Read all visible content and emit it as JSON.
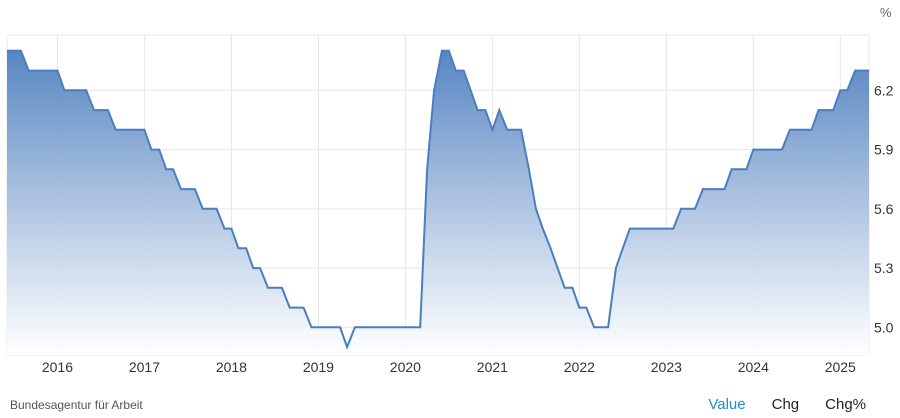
{
  "chart_data": {
    "type": "area",
    "unit_label": "%",
    "xlim": [
      2015.42,
      2025.33
    ],
    "ylim": [
      4.86,
      6.48
    ],
    "yticks": [
      "5.0",
      "5.3",
      "5.6",
      "5.9",
      "6.2"
    ],
    "yticks_values": [
      5.0,
      5.3,
      5.6,
      5.9,
      6.2
    ],
    "xticks": [
      "2016",
      "2017",
      "2018",
      "2019",
      "2020",
      "2021",
      "2022",
      "2023",
      "2024",
      "2025"
    ],
    "xticks_values": [
      2016,
      2017,
      2018,
      2019,
      2020,
      2021,
      2022,
      2023,
      2024,
      2025
    ],
    "grid": true,
    "colors": {
      "line": "#4a7ebf",
      "fill_top": "#4f7fbf",
      "fill_bottom": "#ffffff",
      "grid": "#e6e6e6"
    },
    "series": [
      {
        "points": [
          [
            2015.42,
            6.4
          ],
          [
            2015.58,
            6.4
          ],
          [
            2015.67,
            6.3
          ],
          [
            2016.0,
            6.3
          ],
          [
            2016.08,
            6.2
          ],
          [
            2016.33,
            6.2
          ],
          [
            2016.42,
            6.1
          ],
          [
            2016.58,
            6.1
          ],
          [
            2016.67,
            6.0
          ],
          [
            2017.0,
            6.0
          ],
          [
            2017.08,
            5.9
          ],
          [
            2017.17,
            5.9
          ],
          [
            2017.25,
            5.8
          ],
          [
            2017.33,
            5.8
          ],
          [
            2017.42,
            5.7
          ],
          [
            2017.58,
            5.7
          ],
          [
            2017.67,
            5.6
          ],
          [
            2017.83,
            5.6
          ],
          [
            2017.92,
            5.5
          ],
          [
            2018.0,
            5.5
          ],
          [
            2018.08,
            5.4
          ],
          [
            2018.17,
            5.4
          ],
          [
            2018.25,
            5.3
          ],
          [
            2018.33,
            5.3
          ],
          [
            2018.42,
            5.2
          ],
          [
            2018.58,
            5.2
          ],
          [
            2018.67,
            5.1
          ],
          [
            2018.83,
            5.1
          ],
          [
            2018.92,
            5.0
          ],
          [
            2019.25,
            5.0
          ],
          [
            2019.33,
            4.9
          ],
          [
            2019.42,
            5.0
          ],
          [
            2020.17,
            5.0
          ],
          [
            2020.25,
            5.8
          ],
          [
            2020.33,
            6.2
          ],
          [
            2020.42,
            6.4
          ],
          [
            2020.5,
            6.4
          ],
          [
            2020.58,
            6.3
          ],
          [
            2020.67,
            6.3
          ],
          [
            2020.83,
            6.1
          ],
          [
            2020.92,
            6.1
          ],
          [
            2021.0,
            6.0
          ],
          [
            2021.08,
            6.1
          ],
          [
            2021.17,
            6.0
          ],
          [
            2021.33,
            6.0
          ],
          [
            2021.42,
            5.8
          ],
          [
            2021.5,
            5.6
          ],
          [
            2021.58,
            5.5
          ],
          [
            2021.67,
            5.4
          ],
          [
            2021.83,
            5.2
          ],
          [
            2021.92,
            5.2
          ],
          [
            2022.0,
            5.1
          ],
          [
            2022.08,
            5.1
          ],
          [
            2022.17,
            5.0
          ],
          [
            2022.33,
            5.0
          ],
          [
            2022.42,
            5.3
          ],
          [
            2022.5,
            5.4
          ],
          [
            2022.58,
            5.5
          ],
          [
            2023.08,
            5.5
          ],
          [
            2023.17,
            5.6
          ],
          [
            2023.33,
            5.6
          ],
          [
            2023.42,
            5.7
          ],
          [
            2023.67,
            5.7
          ],
          [
            2023.75,
            5.8
          ],
          [
            2023.92,
            5.8
          ],
          [
            2024.0,
            5.9
          ],
          [
            2024.33,
            5.9
          ],
          [
            2024.42,
            6.0
          ],
          [
            2024.67,
            6.0
          ],
          [
            2024.75,
            6.1
          ],
          [
            2024.92,
            6.1
          ],
          [
            2025.0,
            6.2
          ],
          [
            2025.08,
            6.2
          ],
          [
            2025.17,
            6.3
          ],
          [
            2025.33,
            6.3
          ]
        ]
      }
    ]
  },
  "footer": {
    "source": "Bundesagentur für Arbeit",
    "buttons": [
      "Value",
      "Chg",
      "Chg%"
    ]
  }
}
